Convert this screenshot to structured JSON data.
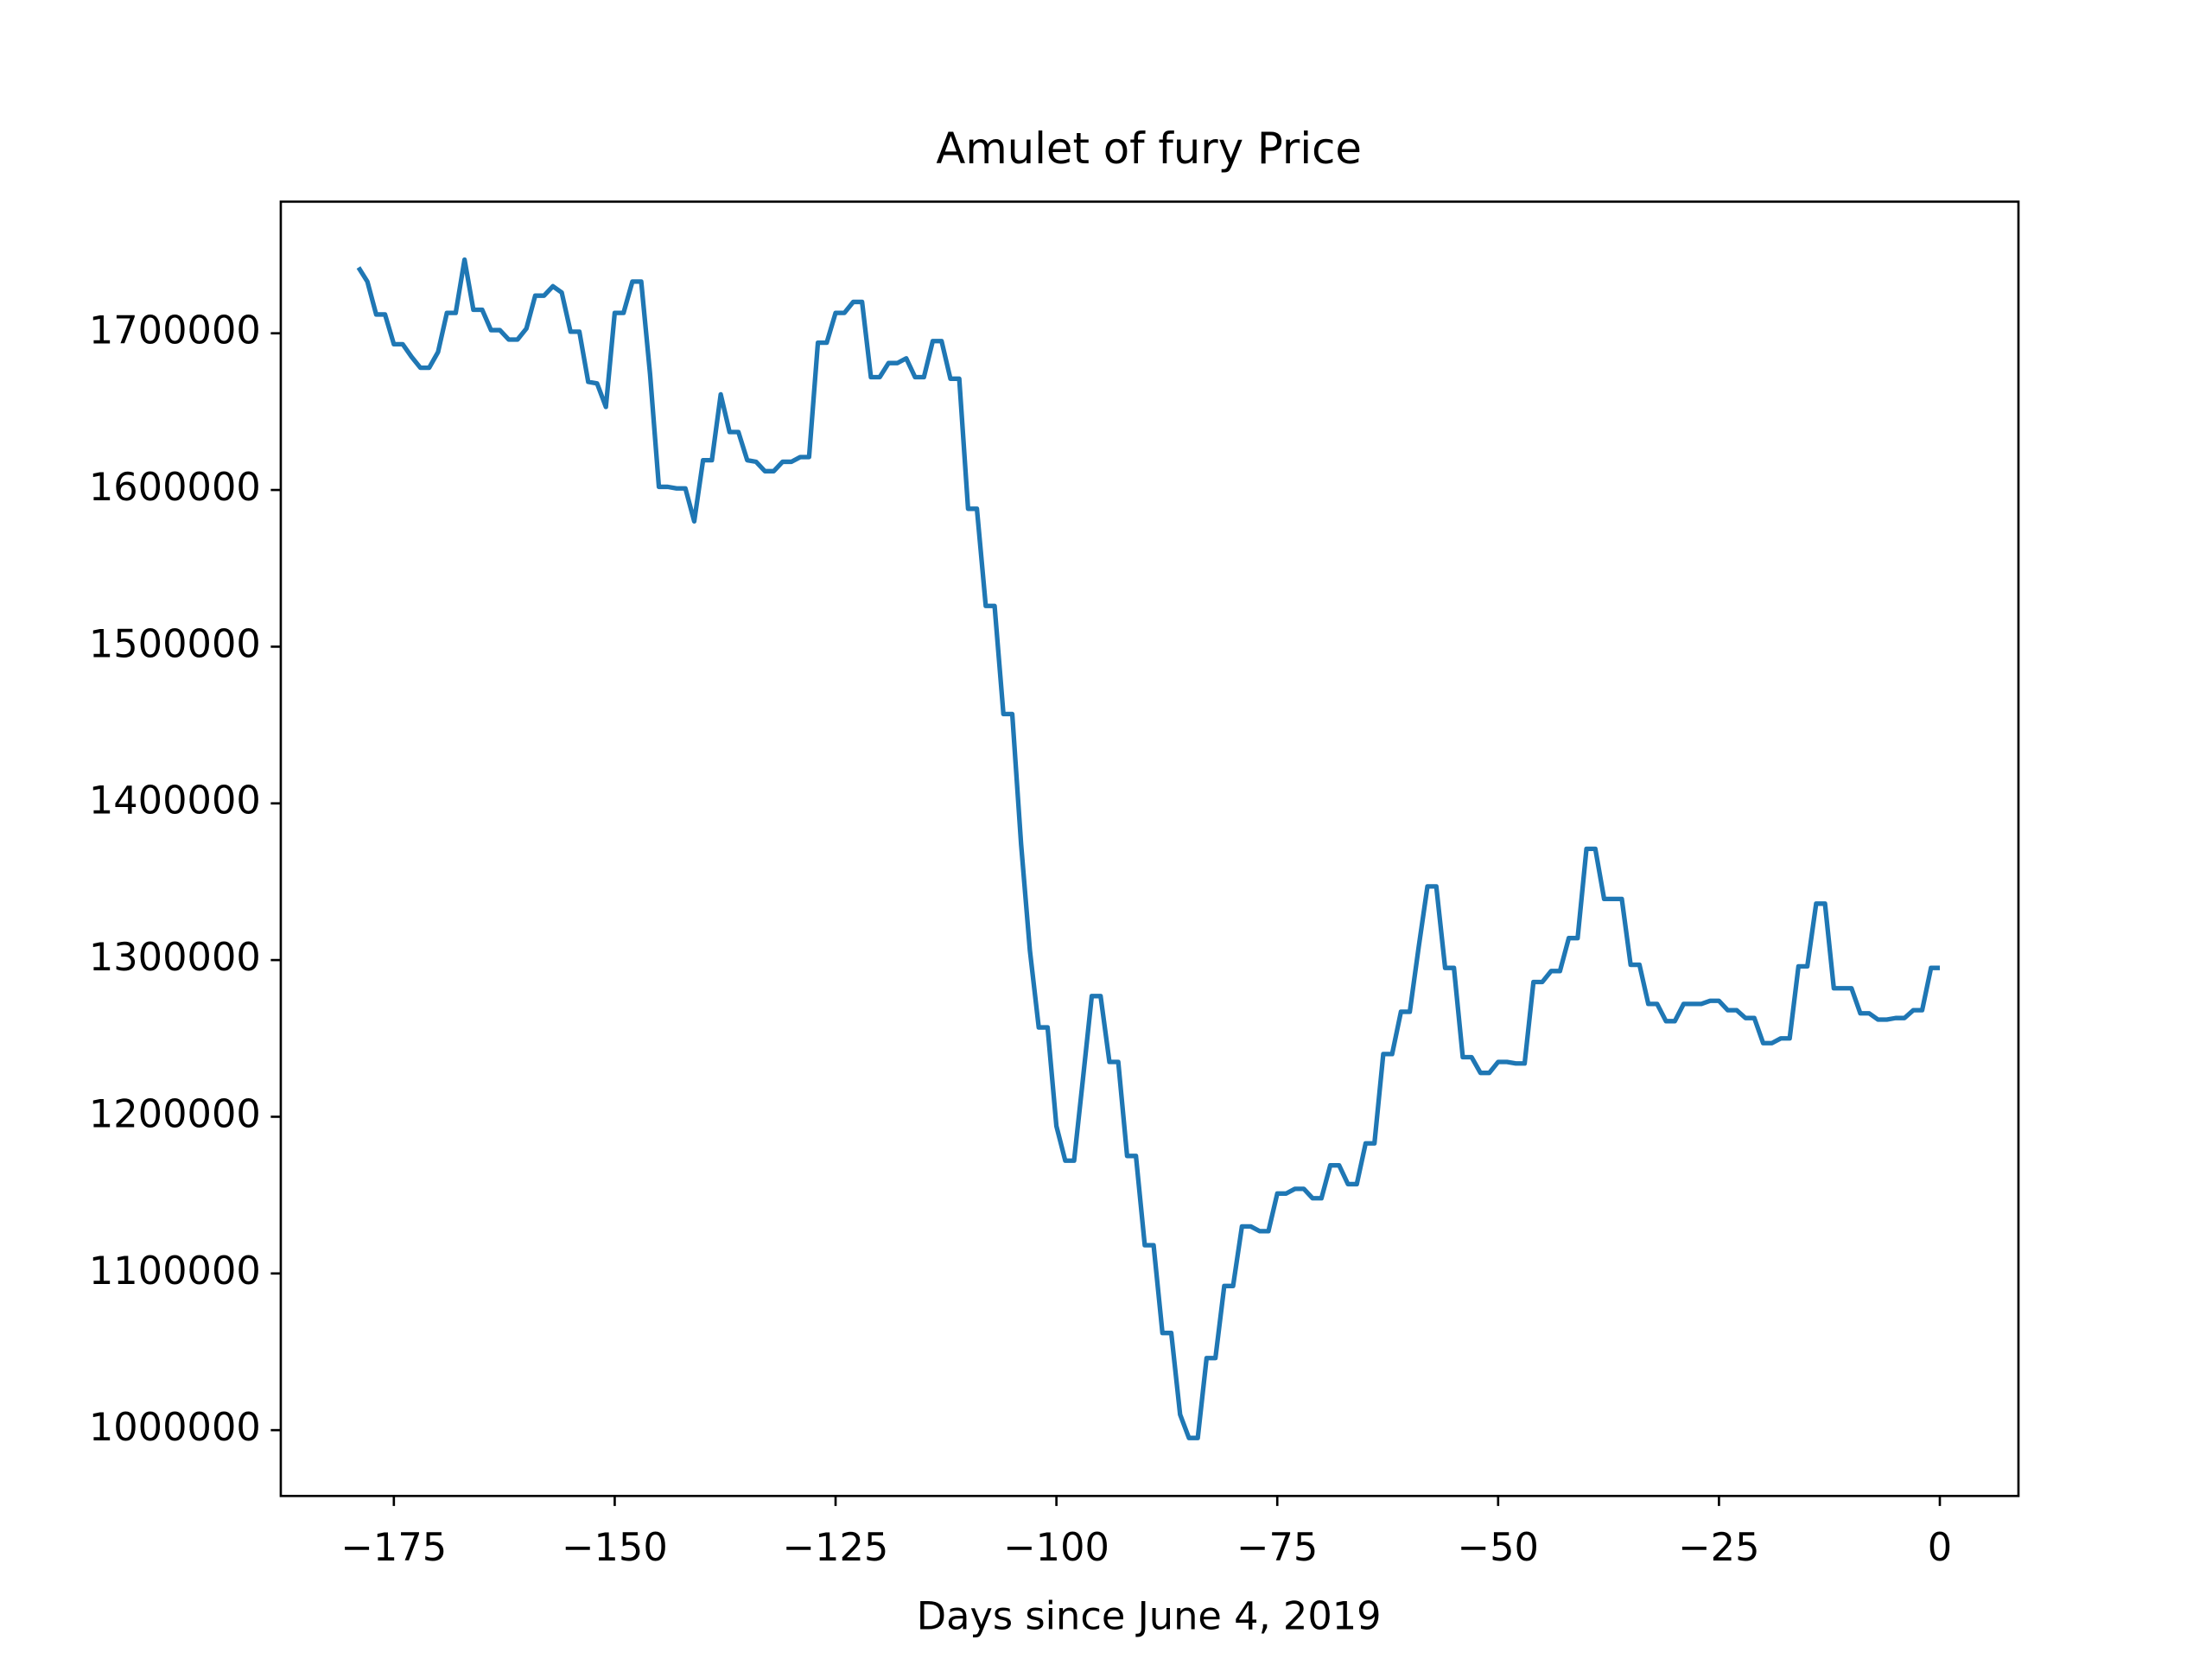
{
  "chart_data": {
    "type": "line",
    "title": "Amulet of fury Price",
    "x_label": "Days since June 4, 2019",
    "x": [
      -179,
      -178,
      -177,
      -176,
      -175,
      -174,
      -173,
      -172,
      -171,
      -170,
      -169,
      -168,
      -167,
      -166,
      -165,
      -164,
      -163,
      -162,
      -161,
      -160,
      -159,
      -158,
      -157,
      -156,
      -155,
      -154,
      -153,
      -152,
      -151,
      -150,
      -149,
      -148,
      -147,
      -146,
      -145,
      -144,
      -143,
      -142,
      -141,
      -140,
      -139,
      -138,
      -137,
      -136,
      -135,
      -134,
      -133,
      -132,
      -131,
      -130,
      -129,
      -128,
      -127,
      -126,
      -125,
      -124,
      -123,
      -122,
      -121,
      -120,
      -119,
      -118,
      -117,
      -116,
      -115,
      -114,
      -113,
      -112,
      -111,
      -110,
      -109,
      -108,
      -107,
      -106,
      -105,
      -104,
      -103,
      -102,
      -101,
      -100,
      -99,
      -98,
      -97,
      -96,
      -95,
      -94,
      -93,
      -92,
      -91,
      -90,
      -89,
      -88,
      -87,
      -86,
      -85,
      -84,
      -83,
      -82,
      -81,
      -80,
      -79,
      -78,
      -77,
      -76,
      -75,
      -74,
      -73,
      -72,
      -71,
      -70,
      -69,
      -68,
      -67,
      -66,
      -65,
      -64,
      -63,
      -62,
      -61,
      -60,
      -59,
      -58,
      -57,
      -56,
      -55,
      -54,
      -53,
      -52,
      -51,
      -50,
      -49,
      -48,
      -47,
      -46,
      -45,
      -44,
      -43,
      -42,
      -41,
      -40,
      -39,
      -38,
      -37,
      -36,
      -35,
      -34,
      -33,
      -32,
      -31,
      -30,
      -29,
      -28,
      -27,
      -26,
      -25,
      -24,
      -23,
      -22,
      -21,
      -20,
      -19,
      -18,
      -17,
      -16,
      -15,
      -14,
      -13,
      -12,
      -11,
      -10,
      -9,
      -8,
      -7,
      -6,
      -5,
      -4,
      -3,
      -2,
      -1,
      0
    ],
    "values": [
      1742000,
      1733000,
      1712000,
      1712000,
      1693000,
      1693000,
      1685000,
      1678000,
      1678000,
      1688000,
      1713000,
      1713000,
      1747000,
      1715000,
      1715000,
      1702000,
      1702000,
      1696000,
      1696000,
      1703000,
      1724000,
      1724000,
      1730000,
      1726000,
      1701000,
      1701000,
      1669000,
      1668000,
      1653000,
      1713000,
      1713000,
      1733000,
      1733000,
      1674000,
      1602000,
      1602000,
      1601000,
      1601000,
      1580000,
      1619000,
      1619000,
      1661000,
      1637000,
      1637000,
      1619000,
      1618000,
      1612000,
      1612000,
      1618000,
      1618000,
      1621000,
      1621000,
      1694000,
      1694000,
      1713000,
      1713000,
      1720000,
      1720000,
      1672000,
      1672000,
      1681000,
      1681000,
      1684000,
      1672000,
      1672000,
      1695000,
      1695000,
      1671000,
      1671000,
      1588000,
      1588000,
      1526000,
      1526000,
      1457000,
      1457000,
      1374000,
      1306000,
      1257000,
      1257000,
      1194000,
      1172000,
      1172000,
      1224000,
      1277000,
      1277000,
      1235000,
      1235000,
      1175000,
      1175000,
      1118000,
      1118000,
      1062000,
      1062000,
      1010000,
      995000,
      995000,
      1046000,
      1046000,
      1092000,
      1092000,
      1130000,
      1130000,
      1127000,
      1127000,
      1151000,
      1151000,
      1154000,
      1154000,
      1148000,
      1148000,
      1169000,
      1169000,
      1157000,
      1157000,
      1183000,
      1183000,
      1240000,
      1240000,
      1267000,
      1267000,
      1308000,
      1347000,
      1347000,
      1295000,
      1295000,
      1238000,
      1238000,
      1228000,
      1228000,
      1235000,
      1235000,
      1234000,
      1234000,
      1286000,
      1286000,
      1293000,
      1293000,
      1314000,
      1314000,
      1371000,
      1371000,
      1339000,
      1339000,
      1339000,
      1297000,
      1297000,
      1272000,
      1272000,
      1261000,
      1261000,
      1272000,
      1272000,
      1272000,
      1274000,
      1274000,
      1268000,
      1268000,
      1263000,
      1263000,
      1247000,
      1247000,
      1250000,
      1250000,
      1296000,
      1296000,
      1336000,
      1336000,
      1282000,
      1282000,
      1282000,
      1266000,
      1266000,
      1262000,
      1262000,
      1263000,
      1263000,
      1268000,
      1268000,
      1295000,
      1295000
    ],
    "color": "#1f77b4",
    "xlim": [
      -187.8,
      8.9
    ],
    "xticks": [
      {
        "value": -175,
        "label": "−175"
      },
      {
        "value": -150,
        "label": "−150"
      },
      {
        "value": -125,
        "label": "−125"
      },
      {
        "value": -100,
        "label": "−100"
      },
      {
        "value": -75,
        "label": "−75"
      },
      {
        "value": -50,
        "label": "−50"
      },
      {
        "value": -25,
        "label": "−25"
      },
      0
    ],
    "ylim": [
      958000,
      1784000
    ],
    "yticks": [
      1000000,
      1100000,
      1200000,
      1300000,
      1400000,
      1500000,
      1600000,
      1700000
    ]
  }
}
